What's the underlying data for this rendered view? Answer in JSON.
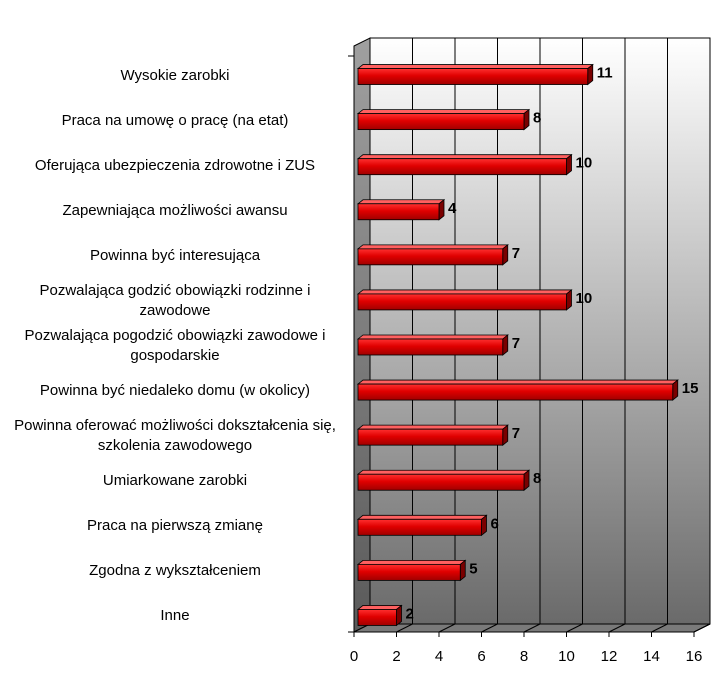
{
  "chart_data": {
    "type": "bar",
    "orientation": "horizontal",
    "style": "3d",
    "categories": [
      "Wysokie zarobki",
      "Praca na umowę o pracę (na etat)",
      "Oferująca ubezpieczenia zdrowotne i ZUS",
      "Zapewniająca możliwości awansu",
      "Powinna być interesująca",
      "Pozwalająca godzić obowiązki rodzinne i zawodowe",
      "Pozwalająca pogodzić obowiązki zawodowe i gospodarskie",
      "Powinna być niedaleko domu (w okolicy)",
      "Powinna oferować możliwości dokształcenia się, szkolenia zawodowego",
      "Umiarkowane zarobki",
      "Praca na pierwszą zmianę",
      "Zgodna z wykształceniem",
      "Inne"
    ],
    "values": [
      11,
      8,
      10,
      4,
      7,
      10,
      7,
      15,
      7,
      8,
      6,
      5,
      2
    ],
    "xlim": [
      0,
      16
    ],
    "x_ticks": [
      "0",
      "2",
      "4",
      "6",
      "8",
      "10",
      "12",
      "14",
      "16"
    ],
    "grid": true,
    "title": "",
    "xlabel": "",
    "ylabel": "",
    "colors": {
      "bar": "#e00000",
      "bar_dark": "#7a0000",
      "bar_light": "#ff6060",
      "wall_light": "#ffffff",
      "wall_dark": "#6e6e6e",
      "gridline": "#000000"
    }
  }
}
